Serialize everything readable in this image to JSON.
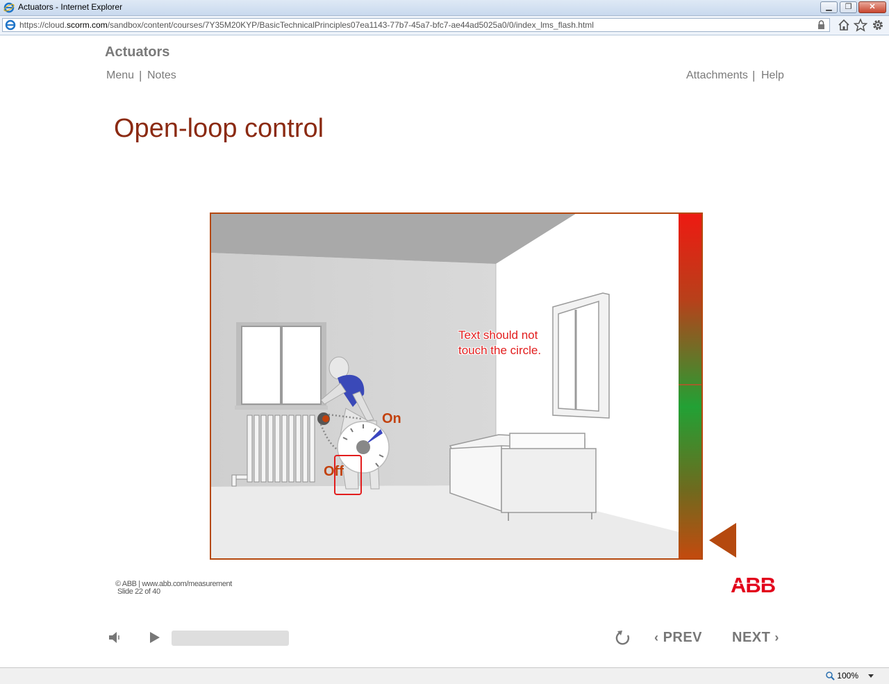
{
  "window": {
    "title": "Actuators - Internet Explorer",
    "minimize": "▁",
    "restore": "❐",
    "close": "✕"
  },
  "address": {
    "url_prefix": "https://cloud.",
    "url_domain": "scorm.com",
    "url_path": "/sandbox/content/courses/7Y35M20KYP/BasicTechnicalPrinciples07ea1143-77b7-45a7-bfc7-ae44ad5025a0/0/index_lms_flash.html"
  },
  "course": {
    "title": "Actuators",
    "menu": "Menu",
    "notes": "Notes",
    "attachments": "Attachments",
    "help": "Help",
    "separator": "|"
  },
  "slide": {
    "title": "Open-loop control",
    "label_on": "On",
    "label_off": "Off",
    "notice_line1": "Text should not",
    "notice_line2": "touch  the circle."
  },
  "footer": {
    "copyright": "© ABB | www.abb.com/measurement",
    "slide_counter": "Slide 22 of 40",
    "logo": "ABB"
  },
  "player": {
    "prev": "PREV",
    "next": "NEXT",
    "progress": 0
  },
  "status": {
    "zoom": "100%"
  },
  "colors": {
    "accent": "#b5490f",
    "title_red": "#8b2a12",
    "notice_red": "#e21d1d",
    "abb_red": "#e2001a"
  }
}
